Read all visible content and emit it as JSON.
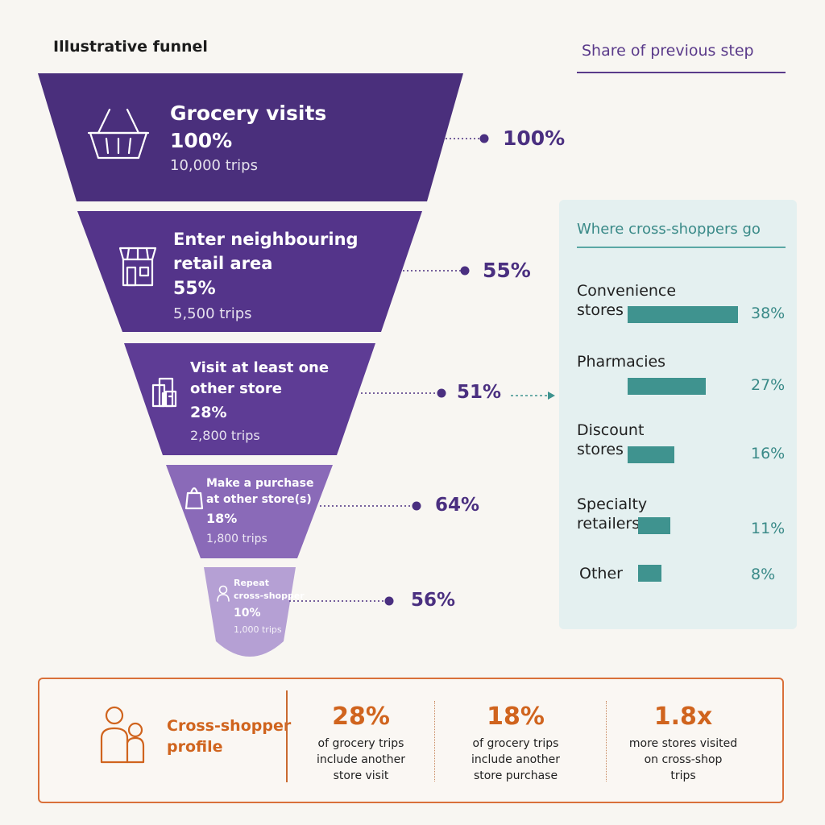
{
  "funnel_title": "Illustrative funnel",
  "share_header": "Share of previous step",
  "chart_data": {
    "type": "funnel",
    "title": "Illustrative funnel",
    "stages": [
      {
        "label_lines": [
          "Grocery visits"
        ],
        "pct_of_total": "100%",
        "trips": "10,000 trips",
        "trips_value": 10000,
        "share_of_previous": "100%",
        "icon": "basket-icon"
      },
      {
        "label_lines": [
          "Enter neighbouring",
          "retail area"
        ],
        "pct_of_total": "55%",
        "trips": "5,500 trips",
        "trips_value": 5500,
        "share_of_previous": "55%",
        "icon": "storefront-icon"
      },
      {
        "label_lines": [
          "Visit at least one",
          "other store"
        ],
        "pct_of_total": "28%",
        "trips": "2,800 trips",
        "trips_value": 2800,
        "share_of_previous": "51%",
        "icon": "stores-icon"
      },
      {
        "label_lines": [
          "Make a purchase",
          "at other store(s)"
        ],
        "pct_of_total": "18%",
        "trips": "1,800 trips",
        "trips_value": 1800,
        "share_of_previous": "64%",
        "icon": "shopping-bag-icon"
      },
      {
        "label_lines": [
          "Repeat",
          "cross-shopper"
        ],
        "pct_of_total": "10%",
        "trips": "1,000 trips",
        "trips_value": 1000,
        "share_of_previous": "56%",
        "icon": "person-icon"
      }
    ],
    "cross_shoppers": {
      "type": "bar",
      "title": "Where cross-shoppers go",
      "categories": [
        {
          "label_lines": [
            "Convenience",
            "stores"
          ],
          "value": 38,
          "label": "38%"
        },
        {
          "label_lines": [
            "Pharmacies"
          ],
          "value": 27,
          "label": "27%"
        },
        {
          "label_lines": [
            "Discount",
            "stores"
          ],
          "value": 16,
          "label": "16%"
        },
        {
          "label_lines": [
            "Specialty",
            "retailers"
          ],
          "value": 11,
          "label": "11%"
        },
        {
          "label_lines": [
            "Other"
          ],
          "value": 8,
          "label": "8%"
        }
      ]
    }
  },
  "colors": {
    "stage_fills": [
      "#4a2f7c",
      "#54348a",
      "#5e3c95",
      "#8a6ab8",
      "#b5a0d4"
    ],
    "share_dots": "#4a2f80",
    "bar_teal": "#3f938f",
    "accent_orange": "#d0641e"
  },
  "profile": {
    "label_lines": [
      "Cross-shopper",
      "profile"
    ],
    "stats": [
      {
        "big": "28%",
        "desc_lines": [
          "of grocery trips",
          "include another",
          "store visit"
        ]
      },
      {
        "big": "18%",
        "desc_lines": [
          "of grocery trips",
          "include another",
          "store purchase"
        ]
      },
      {
        "big": "1.8x",
        "desc_lines": [
          "more stores visited",
          "on cross-shop",
          "trips"
        ]
      }
    ]
  }
}
